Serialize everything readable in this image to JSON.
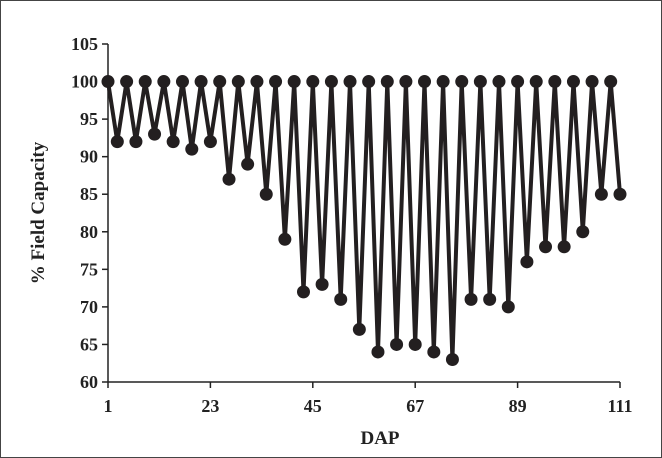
{
  "chart_data": {
    "type": "line",
    "xlabel": "DAP",
    "ylabel": "% Field Capacity",
    "xlim": [
      1,
      111
    ],
    "ylim": [
      60,
      105
    ],
    "xticks": [
      1,
      23,
      45,
      67,
      89,
      111
    ],
    "yticks": [
      60,
      65,
      70,
      75,
      80,
      85,
      90,
      95,
      100,
      105
    ],
    "grid": false,
    "legend": "none",
    "line_color": "#231f20",
    "marker": "circle",
    "series": [
      {
        "x": [
          1,
          3,
          5,
          7,
          9,
          11,
          13,
          15,
          17,
          19,
          21,
          23,
          25,
          27,
          29,
          31,
          33,
          35,
          37,
          39,
          41,
          43,
          45,
          47,
          49,
          51,
          53,
          55,
          57,
          59,
          61,
          63,
          65,
          67,
          69,
          71,
          73,
          75,
          77,
          79,
          81,
          83,
          85,
          87,
          89,
          91,
          93,
          95,
          97,
          99,
          101,
          103,
          105,
          107,
          109,
          111
        ],
        "values": [
          100,
          92,
          100,
          92,
          100,
          93,
          100,
          92,
          100,
          91,
          100,
          92,
          100,
          87,
          100,
          89,
          100,
          85,
          100,
          79,
          100,
          72,
          100,
          73,
          100,
          71,
          100,
          67,
          100,
          64,
          100,
          65,
          100,
          65,
          100,
          64,
          100,
          63,
          100,
          71,
          100,
          71,
          100,
          70,
          100,
          76,
          100,
          78,
          100,
          78,
          100,
          80,
          100,
          85,
          100,
          85
        ]
      }
    ]
  }
}
